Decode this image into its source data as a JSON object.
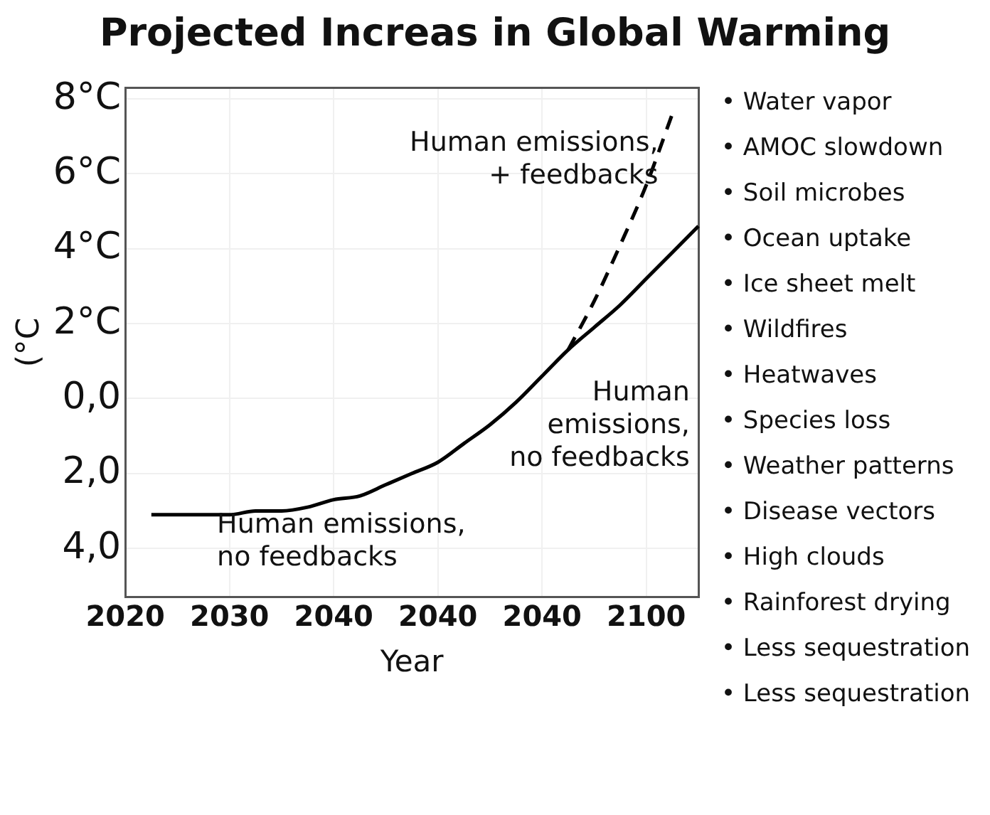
{
  "chart_data": {
    "type": "line",
    "title": "Projected Increas in Global Warming",
    "xlabel": "Year",
    "ylabel": "(°C",
    "categories": [
      "2020",
      null,
      null,
      null,
      "2030",
      null,
      null,
      null,
      "2040",
      null,
      null,
      null,
      "2040",
      null,
      null,
      null,
      "2040",
      null,
      null,
      null,
      "2100",
      null,
      null
    ],
    "ylim": [
      -5.3,
      8.3
    ],
    "yticks": [
      {
        "value": 8,
        "label": "8°C"
      },
      {
        "value": 6,
        "label": "6°C"
      },
      {
        "value": 4,
        "label": "4°C"
      },
      {
        "value": 2,
        "label": "2°C"
      },
      {
        "value": 0,
        "label": "0,0"
      },
      {
        "value": -2,
        "label": "2,0"
      },
      {
        "value": -4,
        "label": "4,0"
      }
    ],
    "grid": true,
    "marker": "none",
    "series": [
      {
        "color": "#000000",
        "line_style": "solid",
        "values": [
          null,
          -3.1,
          -3.1,
          -3.1,
          -3.1,
          -3.0,
          -3.0,
          -2.9,
          -2.7,
          -2.6,
          -2.3,
          -2.0,
          -1.7,
          -1.2,
          -0.7,
          -0.1,
          0.6,
          1.3,
          1.9,
          2.5,
          3.2,
          3.9,
          4.6
        ]
      },
      {
        "color": "#000000",
        "line_style": "dashed",
        "values": [
          null,
          null,
          null,
          null,
          null,
          null,
          null,
          null,
          null,
          null,
          null,
          null,
          null,
          null,
          null,
          null,
          null,
          1.3,
          2.6,
          4.1,
          5.7,
          7.6,
          null
        ]
      }
    ],
    "annotations": [
      "Human emissions,\n+ feedbacks",
      "Human\nemissions,\nno feedbacks",
      "Human emissions,\nno feedbacks",
      "• Water vapor",
      "• AMOC slowdown",
      "• Soil microbes",
      "• Ocean uptake",
      "• Ice sheet melt",
      "• Wildfires",
      "• Heatwaves",
      "• Species loss",
      "• Weather patterns",
      "• Disease vectors",
      "• High clouds",
      "• Rainforest drying",
      "• Less sequestration",
      "• Less sequestration"
    ]
  }
}
